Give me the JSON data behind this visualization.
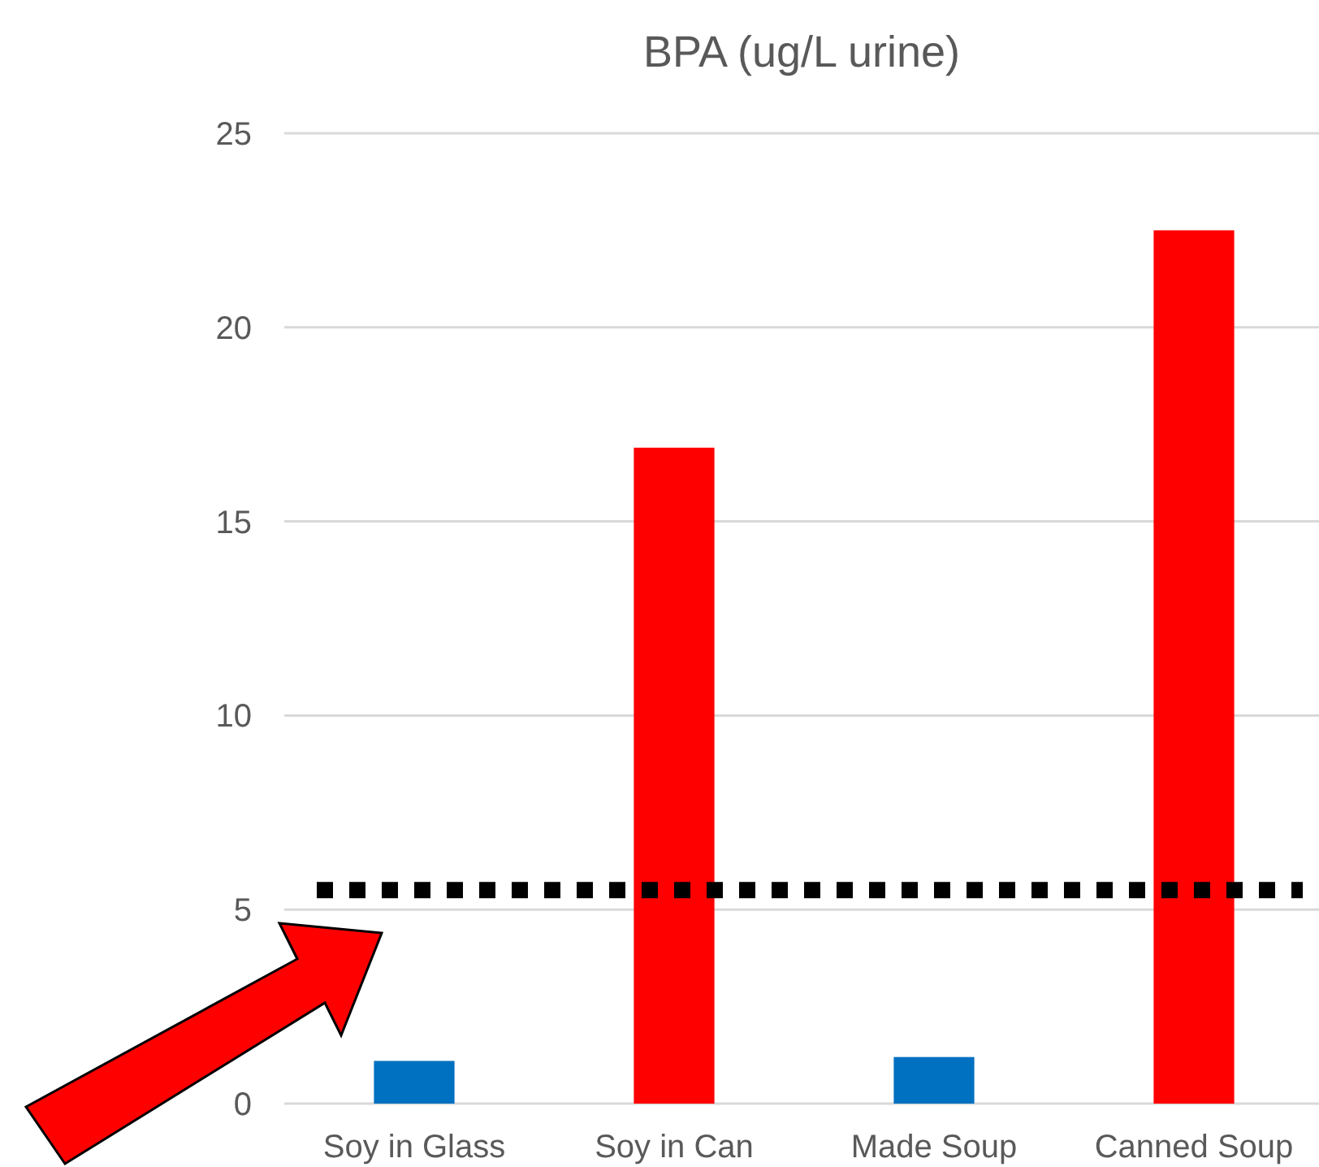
{
  "chart_data": {
    "type": "bar",
    "title": "BPA (ug/L urine)",
    "categories": [
      "Soy in Glass",
      "Soy in Can",
      "Made Soup",
      "Canned Soup"
    ],
    "values": [
      1.1,
      16.9,
      1.2,
      22.5
    ],
    "colors": [
      "#0070c0",
      "#ff0000",
      "#0070c0",
      "#ff0000"
    ],
    "ylim": [
      0,
      25
    ],
    "yticks": [
      0,
      5,
      10,
      15,
      20,
      25
    ],
    "grid": "y",
    "ref_lines": [
      {
        "axis": "y",
        "value": 5.5,
        "color": "#000000",
        "line_style": "dotted"
      }
    ]
  }
}
